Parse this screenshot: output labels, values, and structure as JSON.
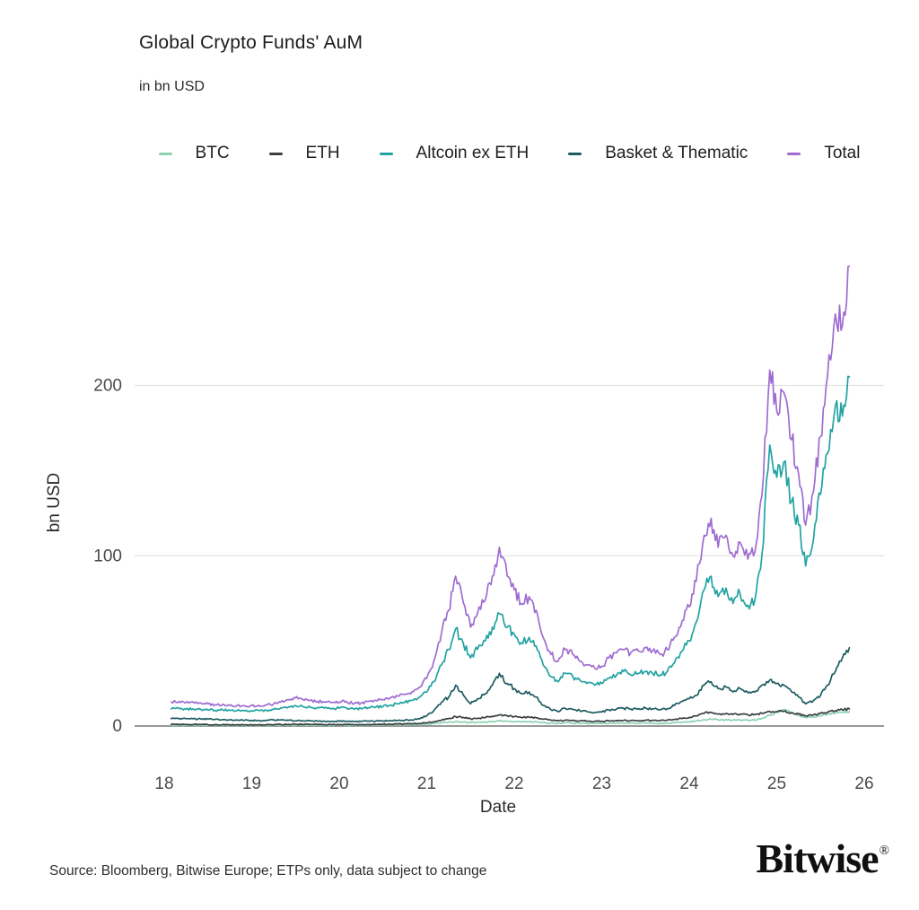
{
  "header": {
    "title": "Global Crypto Funds' AuM",
    "subtitle": "in bn USD"
  },
  "footer": {
    "source": "Source: Bloomberg, Bitwise Europe; ETPs only, data subject to change",
    "brand": "Bitwise",
    "brand_reg": "®"
  },
  "chart_data": {
    "type": "line",
    "title": "Global Crypto Funds' AuM",
    "xlabel": "Date",
    "ylabel": "bn USD",
    "legend_position": "top",
    "grid": "horizontal",
    "x_ticks": [
      18,
      19,
      20,
      21,
      22,
      23,
      24,
      25,
      26
    ],
    "y_ticks": [
      0,
      100,
      200
    ],
    "xlim": [
      17.66,
      26.22
    ],
    "ylim": [
      0,
      280
    ],
    "axis_colors": {
      "gridline": "#e4e4e4",
      "zero_line": "#8a8a8a",
      "tick_text": "#4a4a4a"
    },
    "x": [
      18.08,
      18.17,
      18.25,
      18.33,
      18.42,
      18.5,
      18.58,
      18.67,
      18.75,
      18.83,
      18.92,
      19,
      19.08,
      19.17,
      19.25,
      19.33,
      19.42,
      19.5,
      19.58,
      19.67,
      19.75,
      19.83,
      19.92,
      20,
      20.08,
      20.17,
      20.25,
      20.33,
      20.42,
      20.5,
      20.58,
      20.67,
      20.75,
      20.83,
      20.92,
      21,
      21.08,
      21.17,
      21.25,
      21.33,
      21.42,
      21.5,
      21.58,
      21.67,
      21.75,
      21.83,
      21.92,
      22,
      22.08,
      22.17,
      22.25,
      22.33,
      22.42,
      22.5,
      22.58,
      22.67,
      22.75,
      22.83,
      22.92,
      23,
      23.08,
      23.17,
      23.25,
      23.33,
      23.42,
      23.5,
      23.58,
      23.67,
      23.75,
      23.83,
      23.92,
      24,
      24.08,
      24.17,
      24.25,
      24.33,
      24.42,
      24.5,
      24.58,
      24.67,
      24.75,
      24.83,
      24.92,
      25,
      25.08,
      25.17,
      25.25,
      25.33,
      25.42,
      25.5,
      25.58,
      25.67,
      25.75,
      25.83
    ],
    "series": [
      {
        "name": "BTC",
        "color": "#8ed1b2",
        "values": [
          0.4,
          0.42,
          0.4,
          0.41,
          0.38,
          0.36,
          0.35,
          0.36,
          0.35,
          0.35,
          0.34,
          0.35,
          0.36,
          0.38,
          0.4,
          0.45,
          0.5,
          0.55,
          0.52,
          0.5,
          0.48,
          0.47,
          0.46,
          0.5,
          0.52,
          0.45,
          0.5,
          0.55,
          0.58,
          0.6,
          0.65,
          0.7,
          0.75,
          0.8,
          1,
          1.2,
          1.5,
          2,
          2.3,
          2.6,
          2.4,
          2,
          2.2,
          2.4,
          2.7,
          3,
          2.8,
          2.6,
          2.4,
          2.5,
          2.3,
          2,
          1.8,
          1.6,
          1.8,
          1.7,
          1.6,
          1.5,
          1.5,
          1.5,
          1.6,
          1.7,
          1.7,
          1.7,
          1.7,
          1.8,
          1.7,
          1.6,
          1.7,
          1.9,
          2.2,
          2.5,
          3,
          3.8,
          4,
          3.6,
          3.8,
          3.5,
          3.6,
          3.4,
          3.5,
          4.5,
          6.5,
          8,
          9.5,
          8,
          6.5,
          5,
          5.5,
          6,
          7,
          7.5,
          8,
          8.5
        ]
      },
      {
        "name": "ETH",
        "color": "#3a3f42",
        "values": [
          0.9,
          0.95,
          0.9,
          0.92,
          0.85,
          0.8,
          0.78,
          0.8,
          0.75,
          0.7,
          0.7,
          0.72,
          0.75,
          0.8,
          0.85,
          0.95,
          1,
          1.05,
          1,
          0.95,
          0.9,
          0.88,
          0.85,
          0.8,
          0.85,
          0.75,
          0.8,
          0.9,
          0.95,
          1,
          1.1,
          1.2,
          1.3,
          1.2,
          1.5,
          1.8,
          2.5,
          3.5,
          4.5,
          5.5,
          5,
          4.2,
          4.5,
          5,
          5.8,
          6.5,
          6,
          5.5,
          5,
          5.2,
          4.8,
          4,
          3.5,
          3,
          3.4,
          3.2,
          3,
          2.8,
          2.7,
          2.8,
          3,
          3.2,
          3.3,
          3.2,
          3.2,
          3.4,
          3.3,
          3.2,
          3.4,
          3.8,
          4.4,
          5,
          6,
          7.5,
          8,
          7,
          7.4,
          6.8,
          7,
          6.6,
          6.8,
          7.5,
          8.5,
          8.5,
          8.6,
          7.8,
          7,
          6,
          6.6,
          7.4,
          8,
          9,
          9.5,
          10
        ]
      },
      {
        "name": "Altcoin ex ETH",
        "color": "#22a2a2",
        "values": [
          10,
          10.3,
          9.9,
          10.1,
          9.7,
          9.5,
          9.2,
          9.4,
          9.1,
          9,
          8.9,
          9,
          9.1,
          9.3,
          9.7,
          10.5,
          11.2,
          12,
          11.6,
          11,
          10.8,
          10.5,
          10.4,
          10.5,
          10.8,
          9.8,
          10.2,
          10.8,
          11.2,
          11.5,
          12.2,
          13,
          13.8,
          15,
          17,
          20,
          26,
          36,
          45,
          57,
          48,
          40,
          45,
          50,
          58,
          66,
          58,
          54,
          49,
          52,
          47,
          36,
          29,
          26,
          31,
          29,
          27,
          25,
          24,
          25,
          28,
          30,
          32,
          30,
          31,
          32,
          31,
          30,
          32,
          37,
          44,
          50,
          61,
          80,
          88,
          76,
          81,
          72,
          78,
          71,
          74,
          100,
          165,
          146,
          155,
          132,
          118,
          94,
          110,
          136,
          160,
          188,
          182,
          205
        ]
      },
      {
        "name": "Basket & Thematic",
        "color": "#1d5c60",
        "values": [
          4.3,
          4.4,
          4.3,
          4.2,
          4.1,
          4,
          3.9,
          3.8,
          3.6,
          3.5,
          3.4,
          3.3,
          3.3,
          3.4,
          3.5,
          3.6,
          3.4,
          3,
          3.1,
          3,
          2.9,
          2.9,
          2.8,
          2.8,
          2.9,
          2.6,
          2.7,
          2.9,
          3,
          3,
          3.1,
          3.3,
          3.4,
          3.5,
          4.2,
          6,
          9,
          14,
          17,
          24,
          18,
          13,
          16,
          19,
          24,
          31,
          25,
          22,
          19,
          20,
          17,
          12,
          9.5,
          8.5,
          10.5,
          9.8,
          9,
          8.5,
          8,
          8.2,
          9.5,
          10,
          10.5,
          10,
          10.2,
          10.5,
          10,
          9.6,
          10.2,
          12,
          14.5,
          16,
          18,
          24,
          26,
          22,
          23,
          20,
          22,
          19.5,
          20,
          24,
          27,
          25,
          24,
          20,
          17,
          13,
          15,
          18,
          24,
          32,
          40,
          46
        ]
      },
      {
        "name": "Total",
        "color": "#9f6cd0",
        "values": [
          14,
          14.5,
          13.8,
          14.2,
          13.5,
          13,
          12.5,
          12.8,
          12.2,
          12,
          11.8,
          12,
          12.2,
          12.5,
          13,
          14,
          15.5,
          16.5,
          15.8,
          15,
          14.5,
          14,
          13.8,
          14,
          14.5,
          13,
          13.5,
          14.5,
          15,
          15.5,
          16.5,
          17.5,
          18.5,
          20,
          23,
          28,
          38,
          55,
          68,
          88,
          72,
          58,
          66,
          74,
          88,
          105,
          88,
          80,
          72,
          76,
          68,
          52,
          42,
          38,
          45,
          42,
          38,
          36,
          34,
          35,
          40,
          43,
          45,
          43,
          44,
          46,
          44,
          42,
          45,
          52,
          62,
          70,
          85,
          112,
          122,
          105,
          112,
          100,
          108,
          98,
          102,
          135,
          209,
          185,
          196,
          168,
          148,
          118,
          138,
          170,
          205,
          242,
          235,
          270
        ]
      }
    ]
  }
}
